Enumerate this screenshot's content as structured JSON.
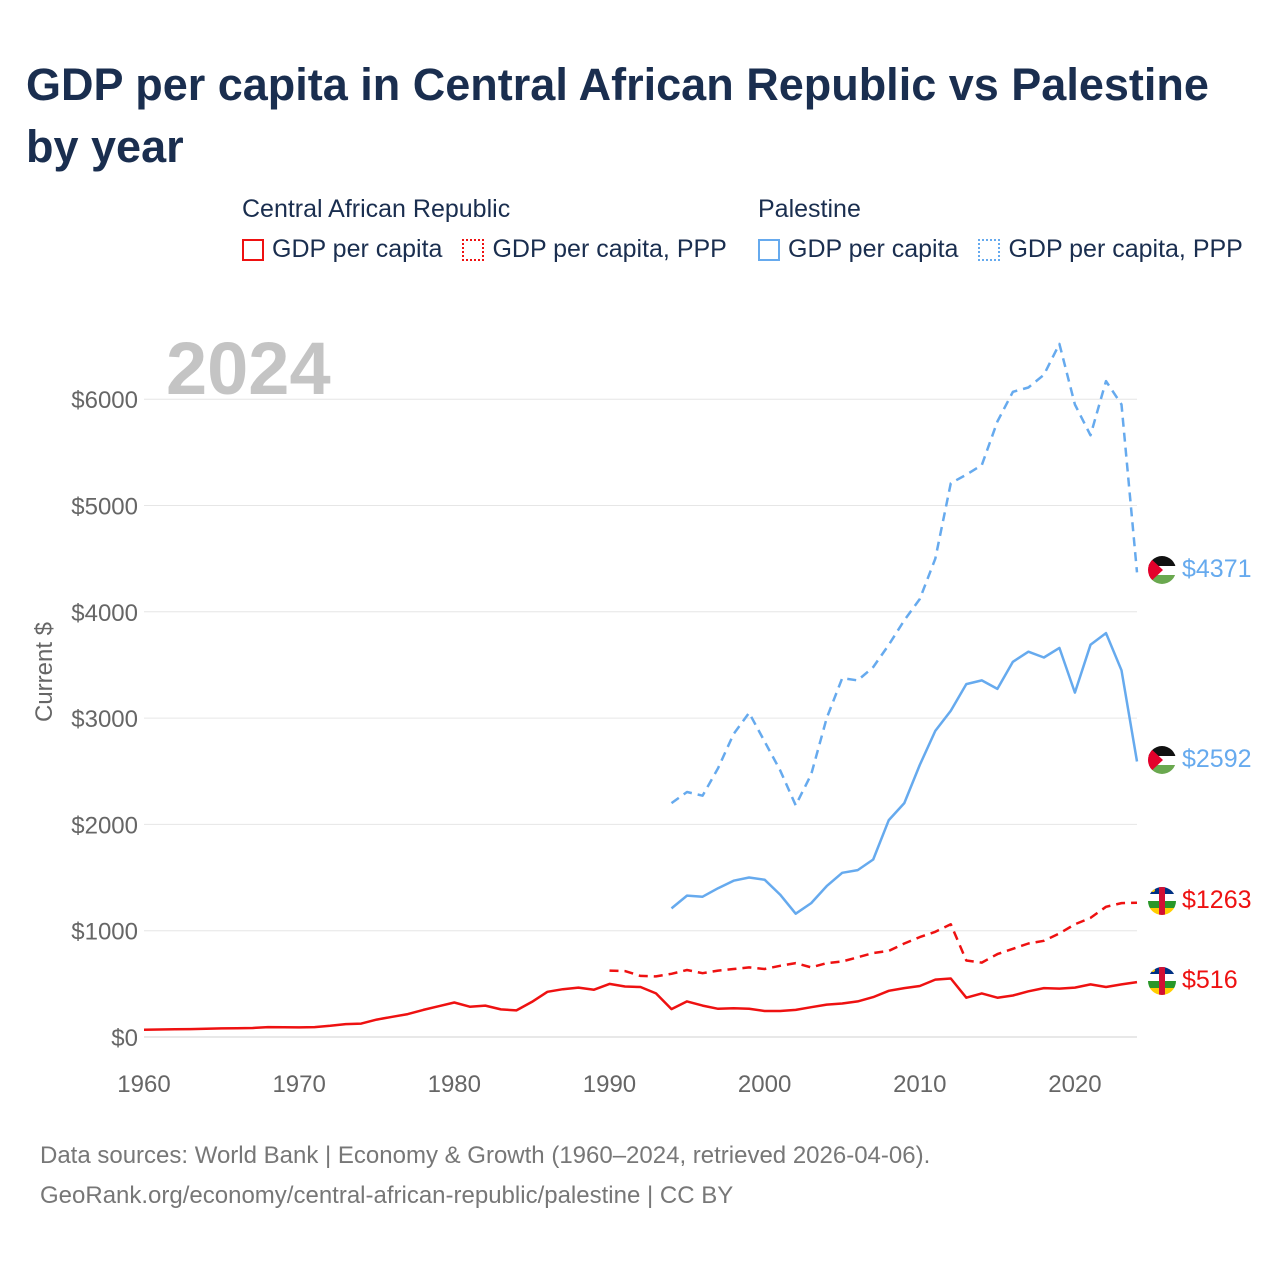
{
  "title": "GDP per capita in Central African Republic vs Palestine by year",
  "legend": {
    "groups": [
      {
        "name": "Central African Republic",
        "items": [
          "GDP per capita",
          "GDP per capita, PPP"
        ]
      },
      {
        "name": "Palestine",
        "items": [
          "GDP per capita",
          "GDP per capita, PPP"
        ]
      }
    ]
  },
  "colors": {
    "car": "#ee1111",
    "palestine": "#66aaee",
    "grid": "#e6e6e6",
    "axis_text": "#666666",
    "year_watermark": "#c4c4c4"
  },
  "year_watermark": "2024",
  "source": {
    "line1": "Data sources: World Bank | Economy & Growth (1960–2024, retrieved 2026-04-06).",
    "line2": "GeoRank.org/economy/central-african-republic/palestine | CC BY"
  },
  "chart_data": {
    "type": "line",
    "title": "GDP per capita in Central African Republic vs Palestine by year",
    "xlabel": "",
    "ylabel": "Current $",
    "xlim": [
      1960,
      2024
    ],
    "ylim": [
      0,
      6500
    ],
    "x_ticks": [
      1960,
      1970,
      1980,
      1990,
      2000,
      2010,
      2020
    ],
    "x_tick_labels": [
      "1960",
      "1970",
      "1980",
      "1990",
      "2000",
      "2010",
      "2020"
    ],
    "y_ticks": [
      0,
      1000,
      2000,
      3000,
      4000,
      5000,
      6000
    ],
    "y_tick_labels": [
      "$0",
      "$1000",
      "$2000",
      "$3000",
      "$4000",
      "$5000",
      "$6000"
    ],
    "grid": true,
    "series": [
      {
        "id": "car_gdp",
        "name": "Central African Republic — GDP per capita",
        "style": "solid",
        "color": "#ee1111",
        "end_label": "$516",
        "flag": "central-african-republic-flag-icon",
        "x": [
          1960,
          1961,
          1962,
          1963,
          1964,
          1965,
          1966,
          1967,
          1968,
          1969,
          1970,
          1971,
          1972,
          1973,
          1974,
          1975,
          1976,
          1977,
          1978,
          1979,
          1980,
          1981,
          1982,
          1983,
          1984,
          1985,
          1986,
          1987,
          1988,
          1989,
          1990,
          1991,
          1992,
          1993,
          1994,
          1995,
          1996,
          1997,
          1998,
          1999,
          2000,
          2001,
          2002,
          2003,
          2004,
          2005,
          2006,
          2007,
          2008,
          2009,
          2010,
          2011,
          2012,
          2013,
          2014,
          2015,
          2016,
          2017,
          2018,
          2019,
          2020,
          2021,
          2022,
          2023,
          2024
        ],
        "values": [
          69,
          71,
          73,
          74,
          78,
          81,
          83,
          85,
          93,
          91,
          90,
          93,
          105,
          121,
          126,
          164,
          190,
          215,
          255,
          290,
          325,
          285,
          295,
          260,
          250,
          330,
          425,
          450,
          465,
          445,
          500,
          475,
          470,
          410,
          262,
          335,
          295,
          265,
          270,
          265,
          245,
          245,
          255,
          280,
          305,
          315,
          335,
          375,
          435,
          460,
          480,
          540,
          550,
          370,
          410,
          370,
          390,
          430,
          460,
          455,
          465,
          495,
          470,
          495,
          516
        ]
      },
      {
        "id": "car_ppp",
        "name": "Central African Republic — GDP per capita, PPP",
        "style": "dashed",
        "color": "#ee1111",
        "end_label": "$1263",
        "flag": "central-african-republic-flag-icon",
        "x": [
          1990,
          1991,
          1992,
          1993,
          1994,
          1995,
          1996,
          1997,
          1998,
          1999,
          2000,
          2001,
          2002,
          2003,
          2004,
          2005,
          2006,
          2007,
          2008,
          2009,
          2010,
          2011,
          2012,
          2013,
          2014,
          2015,
          2016,
          2017,
          2018,
          2019,
          2020,
          2021,
          2022,
          2023,
          2024
        ],
        "values": [
          625,
          620,
          575,
          570,
          595,
          630,
          600,
          625,
          640,
          655,
          640,
          670,
          695,
          655,
          695,
          710,
          750,
          790,
          810,
          880,
          940,
          990,
          1060,
          720,
          700,
          780,
          830,
          880,
          905,
          975,
          1060,
          1120,
          1225,
          1260,
          1263
        ]
      },
      {
        "id": "pse_gdp",
        "name": "Palestine — GDP per capita",
        "style": "solid",
        "color": "#66aaee",
        "end_label": "$2592",
        "flag": "palestine-flag-icon",
        "x": [
          1994,
          1995,
          1996,
          1997,
          1998,
          1999,
          2000,
          2001,
          2002,
          2003,
          2004,
          2005,
          2006,
          2007,
          2008,
          2009,
          2010,
          2011,
          2012,
          2013,
          2014,
          2015,
          2016,
          2017,
          2018,
          2019,
          2020,
          2021,
          2022,
          2023,
          2024
        ],
        "values": [
          1210,
          1330,
          1320,
          1400,
          1470,
          1500,
          1480,
          1340,
          1160,
          1260,
          1420,
          1545,
          1570,
          1670,
          2040,
          2200,
          2560,
          2880,
          3070,
          3320,
          3355,
          3275,
          3530,
          3625,
          3570,
          3660,
          3240,
          3690,
          3800,
          3450,
          2592
        ]
      },
      {
        "id": "pse_ppp",
        "name": "Palestine — GDP per capita, PPP",
        "style": "dashed",
        "color": "#66aaee",
        "end_label": "$4371",
        "flag": "palestine-flag-icon",
        "x": [
          1994,
          1995,
          1996,
          1997,
          1998,
          1999,
          2000,
          2001,
          2002,
          2003,
          2004,
          2005,
          2006,
          2007,
          2008,
          2009,
          2010,
          2011,
          2012,
          2013,
          2014,
          2015,
          2016,
          2017,
          2018,
          2019,
          2020,
          2021,
          2022,
          2023,
          2024
        ],
        "values": [
          2200,
          2305,
          2270,
          2530,
          2850,
          3050,
          2780,
          2510,
          2180,
          2470,
          3000,
          3375,
          3355,
          3480,
          3690,
          3920,
          4120,
          4500,
          5210,
          5290,
          5380,
          5790,
          6070,
          6110,
          6230,
          6520,
          5950,
          5660,
          6170,
          5950,
          4371
        ]
      }
    ]
  }
}
